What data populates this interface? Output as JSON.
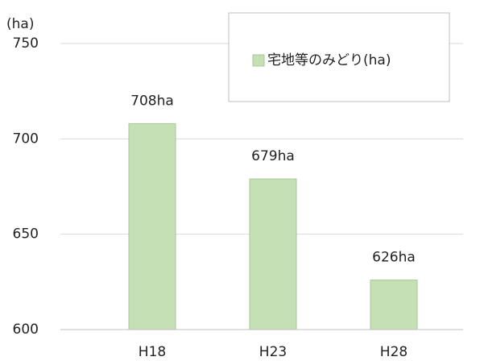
{
  "chart_data": {
    "type": "bar",
    "y_label": "(ha)",
    "categories": [
      "H18",
      "H23",
      "H28"
    ],
    "series": [
      {
        "name": "宅地等のみどり(ha)",
        "color": "#c5e0b4",
        "values": [
          708,
          679,
          626
        ],
        "value_labels": [
          "708ha",
          "679ha",
          "626ha"
        ]
      }
    ],
    "ylim": [
      600,
      750
    ],
    "yticks": [
      600,
      650,
      700,
      750
    ],
    "grid": true,
    "legend": "top-right"
  }
}
